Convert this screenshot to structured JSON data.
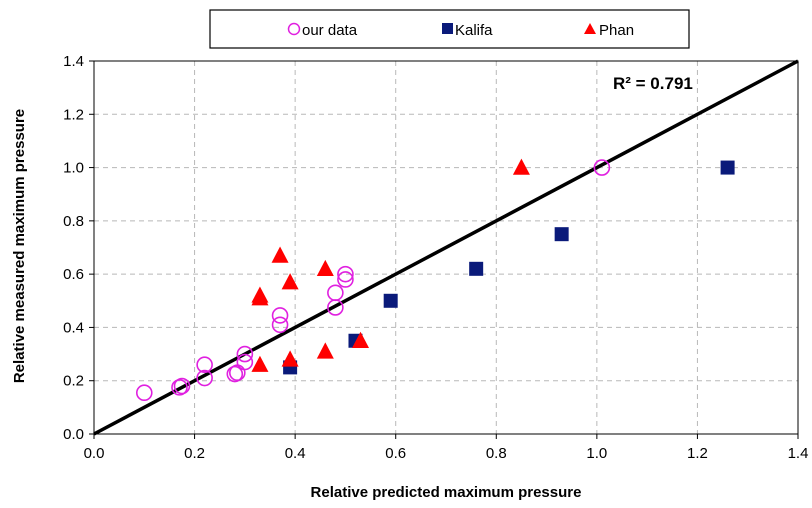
{
  "chart_data": {
    "type": "scatter",
    "xlabel": "Relative predicted maximum pressure",
    "ylabel": "Relative measured maximum pressure",
    "xlim": [
      0,
      1.4
    ],
    "ylim": [
      0,
      1.4
    ],
    "x_ticks": [
      "0.0",
      "0.2",
      "0.4",
      "0.6",
      "0.8",
      "1.0",
      "1.2",
      "1.4"
    ],
    "y_ticks": [
      "0.0",
      "0.2",
      "0.4",
      "0.6",
      "0.8",
      "1.0",
      "1.2",
      "1.4"
    ],
    "grid": true,
    "legend_position": "top-center",
    "annotation": "R² = 0.791",
    "fit_line": {
      "x": [
        0,
        1.4
      ],
      "y": [
        0,
        1.4
      ],
      "color": "#000000"
    },
    "series": [
      {
        "name": "our data",
        "marker": "open-circle",
        "color": "#e020e0",
        "points": [
          [
            0.1,
            0.155
          ],
          [
            0.17,
            0.175
          ],
          [
            0.175,
            0.18
          ],
          [
            0.22,
            0.21
          ],
          [
            0.22,
            0.26
          ],
          [
            0.28,
            0.225
          ],
          [
            0.285,
            0.23
          ],
          [
            0.3,
            0.27
          ],
          [
            0.3,
            0.3
          ],
          [
            0.37,
            0.41
          ],
          [
            0.37,
            0.445
          ],
          [
            0.48,
            0.475
          ],
          [
            0.48,
            0.53
          ],
          [
            0.5,
            0.58
          ],
          [
            0.5,
            0.6
          ],
          [
            1.01,
            1.0
          ]
        ]
      },
      {
        "name": "Kalifa",
        "marker": "filled-square",
        "color": "#0a1a7a",
        "points": [
          [
            0.39,
            0.25
          ],
          [
            0.52,
            0.35
          ],
          [
            0.59,
            0.5
          ],
          [
            0.76,
            0.62
          ],
          [
            0.93,
            0.75
          ],
          [
            1.26,
            1.0
          ]
        ]
      },
      {
        "name": "Phan",
        "marker": "filled-triangle",
        "color": "#ff0000",
        "points": [
          [
            0.33,
            0.26
          ],
          [
            0.33,
            0.51
          ],
          [
            0.33,
            0.52
          ],
          [
            0.37,
            0.67
          ],
          [
            0.39,
            0.28
          ],
          [
            0.39,
            0.57
          ],
          [
            0.46,
            0.31
          ],
          [
            0.46,
            0.62
          ],
          [
            0.53,
            0.35
          ],
          [
            0.85,
            1.0
          ]
        ]
      }
    ]
  }
}
